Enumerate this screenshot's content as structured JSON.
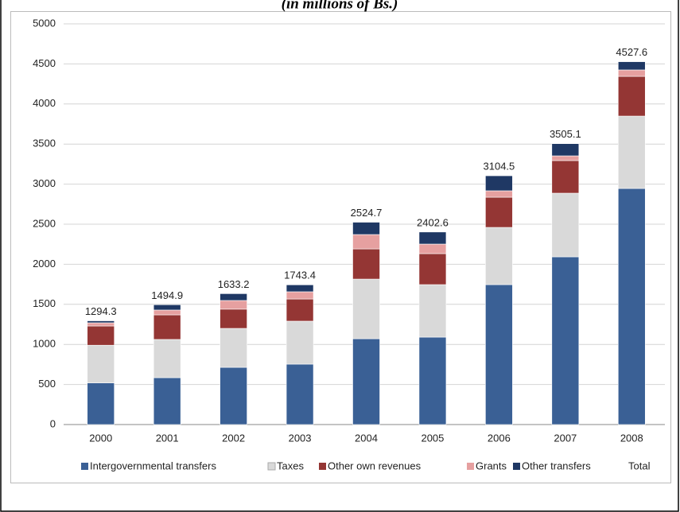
{
  "chart_data": {
    "type": "stacked_bar",
    "subtitle": "(in millions of Bs.)",
    "categories": [
      "2000",
      "2001",
      "2002",
      "2003",
      "2004",
      "2005",
      "2006",
      "2007",
      "2008"
    ],
    "series": [
      {
        "name": "Intergovernmental transfers",
        "color": "#3a6095",
        "values": [
          520,
          585,
          714,
          754,
          1071,
          1091,
          1746,
          2093,
          2946
        ]
      },
      {
        "name": "Taxes",
        "color": "#d9d9d9",
        "values": [
          470,
          477,
          486,
          536,
          744,
          655,
          714,
          794,
          903
        ]
      },
      {
        "name": "Other own revenues",
        "color": "#943634",
        "values": [
          240,
          307,
          240,
          277,
          377,
          387,
          377,
          407,
          496
        ]
      },
      {
        "name": "Grants",
        "color": "#e6a0a0",
        "values": [
          40,
          60,
          108,
          90,
          179,
          119,
          80,
          59,
          80
        ]
      },
      {
        "name": "Other transfers",
        "color": "#1f3864",
        "values": [
          24.3,
          65.9,
          85.2,
          86.4,
          153.7,
          150.6,
          187.5,
          152.1,
          102.6
        ]
      },
      {
        "name": "Total",
        "values": [
          1294.3,
          1494.9,
          1633.2,
          1743.4,
          2524.7,
          2402.6,
          3104.5,
          3505.1,
          4527.6
        ]
      }
    ],
    "ylim": [
      0,
      5000
    ],
    "yticks": [
      0,
      500,
      1000,
      1500,
      2000,
      2500,
      3000,
      3500,
      4000,
      4500,
      5000
    ],
    "grid": true,
    "legend": "bottom"
  }
}
